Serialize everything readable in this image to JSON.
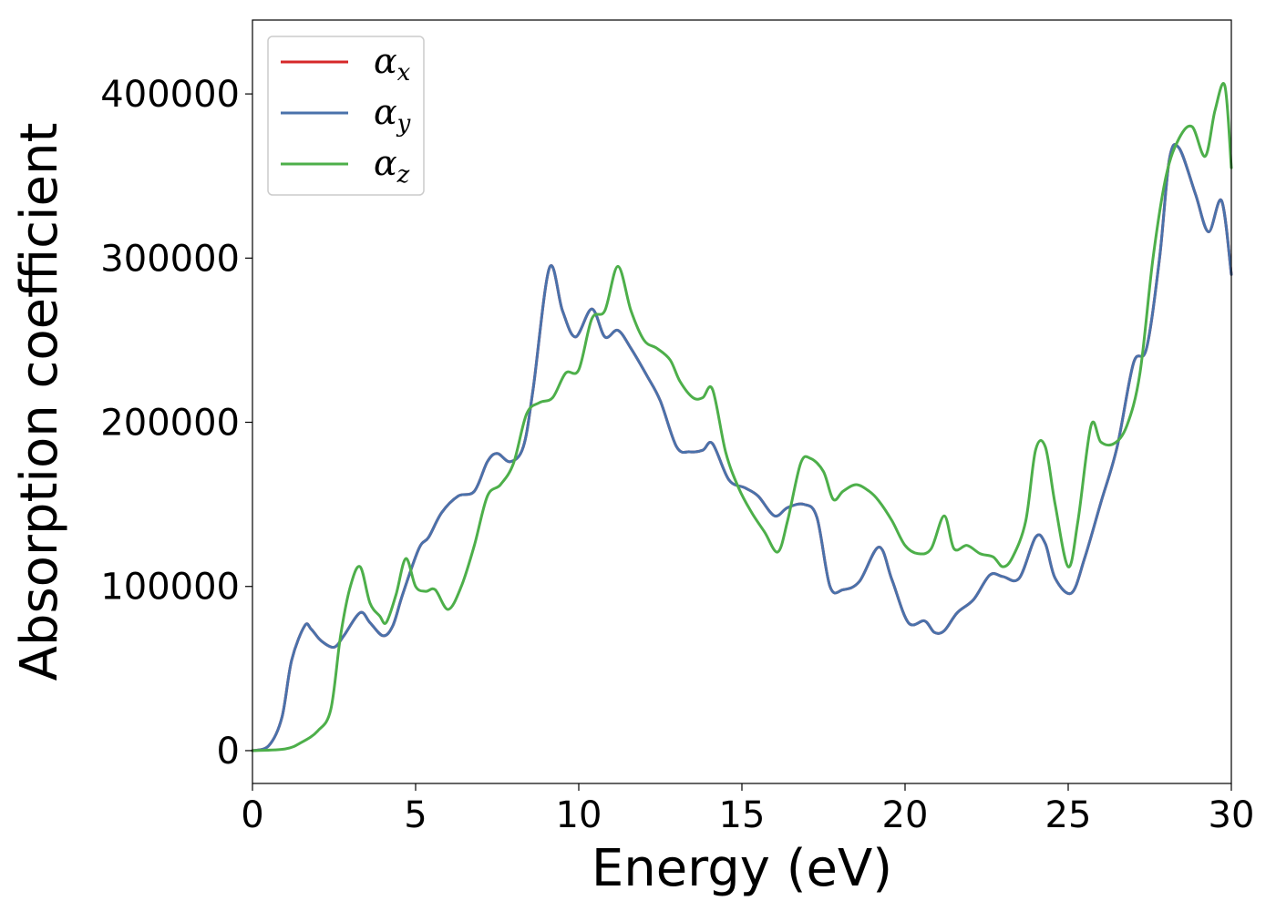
{
  "chart_data": {
    "type": "line",
    "title": "",
    "xlabel": "Energy (eV)",
    "ylabel": "Absorption coefficient",
    "xlim": [
      0,
      30
    ],
    "ylim": [
      -20000,
      445000
    ],
    "xticks": [
      0,
      5,
      10,
      15,
      20,
      25,
      30
    ],
    "yticks": [
      0,
      100000,
      200000,
      300000,
      400000
    ],
    "grid": false,
    "legend_position": "top-left",
    "series": [
      {
        "name": "α",
        "subscript": "x",
        "color": "#d62728",
        "x": [
          0,
          0.5,
          0.9,
          1.2,
          1.6,
          1.8,
          2.1,
          2.5,
          2.8,
          3.3,
          3.6,
          4.0,
          4.3,
          4.6,
          5.1,
          5.4,
          5.8,
          6.3,
          6.8,
          7.2,
          7.5,
          7.9,
          8.3,
          8.6,
          9.1,
          9.5,
          9.9,
          10.4,
          10.8,
          11.2,
          11.6,
          12.1,
          12.5,
          13.0,
          13.4,
          13.8,
          14.1,
          14.6,
          15.1,
          15.5,
          16.0,
          16.4,
          16.9,
          17.3,
          17.7,
          18.1,
          18.6,
          19.2,
          19.6,
          20.1,
          20.6,
          20.9,
          21.2,
          21.6,
          22.1,
          22.6,
          23.0,
          23.5,
          24.0,
          24.3,
          24.6,
          25.1,
          25.5,
          26.0,
          26.5,
          27.0,
          27.4,
          27.8,
          28.1,
          28.4,
          28.9,
          29.3,
          29.7,
          30.0
        ],
        "y": [
          0,
          3000,
          20000,
          55000,
          76000,
          74000,
          67000,
          63000,
          70000,
          84000,
          78000,
          70000,
          76000,
          95000,
          123000,
          130000,
          145000,
          155000,
          158000,
          176000,
          181000,
          176000,
          185000,
          220000,
          294000,
          268000,
          252000,
          269000,
          252000,
          256000,
          245000,
          228000,
          213000,
          185000,
          182000,
          183000,
          187000,
          165000,
          160000,
          155000,
          143000,
          148000,
          150000,
          142000,
          100000,
          98000,
          103000,
          124000,
          104000,
          78000,
          79000,
          72000,
          73000,
          84000,
          92000,
          107000,
          106000,
          105000,
          130000,
          126000,
          105000,
          96000,
          117000,
          151000,
          185000,
          236000,
          245000,
          300000,
          360000,
          367000,
          339000,
          316000,
          335000,
          290000
        ]
      },
      {
        "name": "α",
        "subscript": "y",
        "color": "#4a72ab",
        "x": [
          0,
          0.5,
          0.9,
          1.2,
          1.6,
          1.8,
          2.1,
          2.5,
          2.8,
          3.3,
          3.6,
          4.0,
          4.3,
          4.6,
          5.1,
          5.4,
          5.8,
          6.3,
          6.8,
          7.2,
          7.5,
          7.9,
          8.3,
          8.6,
          9.1,
          9.5,
          9.9,
          10.4,
          10.8,
          11.2,
          11.6,
          12.1,
          12.5,
          13.0,
          13.4,
          13.8,
          14.1,
          14.6,
          15.1,
          15.5,
          16.0,
          16.4,
          16.9,
          17.3,
          17.7,
          18.1,
          18.6,
          19.2,
          19.6,
          20.1,
          20.6,
          20.9,
          21.2,
          21.6,
          22.1,
          22.6,
          23.0,
          23.5,
          24.0,
          24.3,
          24.6,
          25.1,
          25.5,
          26.0,
          26.5,
          27.0,
          27.4,
          27.8,
          28.1,
          28.4,
          28.9,
          29.3,
          29.7,
          30.0
        ],
        "y": [
          0,
          3000,
          20000,
          55000,
          76000,
          74000,
          67000,
          63000,
          70000,
          84000,
          78000,
          70000,
          76000,
          95000,
          123000,
          130000,
          145000,
          155000,
          158000,
          176000,
          181000,
          176000,
          185000,
          220000,
          294000,
          268000,
          252000,
          269000,
          252000,
          256000,
          245000,
          228000,
          213000,
          185000,
          182000,
          183000,
          187000,
          165000,
          160000,
          155000,
          143000,
          148000,
          150000,
          142000,
          100000,
          98000,
          103000,
          124000,
          104000,
          78000,
          79000,
          72000,
          73000,
          84000,
          92000,
          107000,
          106000,
          105000,
          130000,
          126000,
          105000,
          96000,
          117000,
          151000,
          185000,
          236000,
          245000,
          300000,
          360000,
          367000,
          339000,
          316000,
          335000,
          290000
        ]
      },
      {
        "name": "α",
        "subscript": "z",
        "color": "#4daf4a",
        "x": [
          0,
          1.0,
          1.5,
          2.0,
          2.4,
          2.7,
          3.0,
          3.3,
          3.6,
          3.9,
          4.1,
          4.4,
          4.7,
          5.0,
          5.3,
          5.6,
          6.0,
          6.4,
          6.8,
          7.2,
          7.6,
          8.0,
          8.4,
          8.8,
          9.2,
          9.6,
          10.0,
          10.4,
          10.8,
          11.2,
          11.6,
          12.0,
          12.4,
          12.8,
          13.1,
          13.5,
          13.8,
          14.1,
          14.5,
          14.9,
          15.3,
          15.7,
          16.1,
          16.4,
          16.8,
          17.1,
          17.5,
          17.8,
          18.1,
          18.5,
          18.9,
          19.2,
          19.6,
          20.0,
          20.4,
          20.8,
          21.2,
          21.5,
          21.9,
          22.3,
          22.7,
          23.0,
          23.3,
          23.7,
          24.0,
          24.3,
          24.6,
          25.0,
          25.3,
          25.7,
          26.0,
          26.4,
          26.8,
          27.2,
          27.6,
          28.0,
          28.4,
          28.8,
          29.2,
          29.5,
          29.8,
          30.0
        ],
        "y": [
          0,
          1000,
          5000,
          12000,
          25000,
          70000,
          100000,
          112000,
          90000,
          82000,
          78000,
          95000,
          117000,
          100000,
          97000,
          98000,
          86000,
          100000,
          125000,
          155000,
          162000,
          175000,
          205000,
          212000,
          215000,
          230000,
          232000,
          263000,
          268000,
          295000,
          268000,
          250000,
          245000,
          238000,
          225000,
          215000,
          215000,
          220000,
          182000,
          160000,
          145000,
          133000,
          121000,
          140000,
          175000,
          178000,
          170000,
          153000,
          158000,
          162000,
          158000,
          152000,
          140000,
          125000,
          120000,
          123000,
          143000,
          123000,
          125000,
          120000,
          118000,
          112000,
          118000,
          140000,
          183000,
          185000,
          150000,
          112000,
          140000,
          198000,
          188000,
          187000,
          198000,
          230000,
          300000,
          350000,
          373000,
          380000,
          362000,
          390000,
          405000,
          355000
        ]
      }
    ]
  }
}
